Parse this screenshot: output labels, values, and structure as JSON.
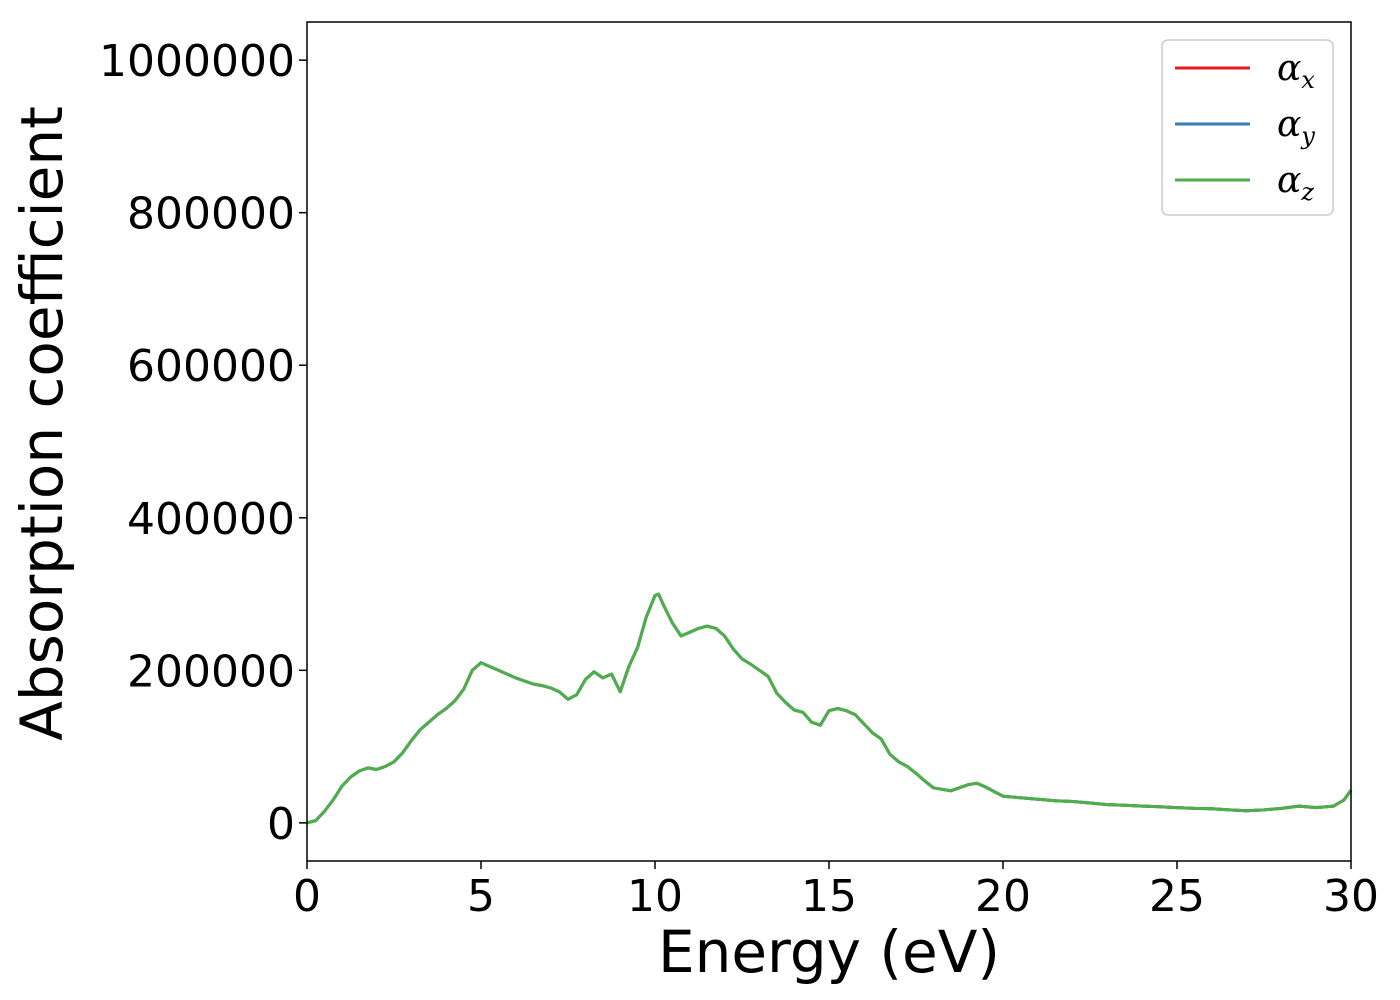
{
  "chart_data": {
    "type": "line",
    "title": "",
    "xlabel": "Energy (eV)",
    "ylabel": "Absorption coefficient",
    "xlim": [
      0,
      30
    ],
    "ylim": [
      -50000,
      1050000
    ],
    "xticks": [
      0,
      5,
      10,
      15,
      20,
      25,
      30
    ],
    "yticks": [
      0,
      200000,
      400000,
      600000,
      800000,
      1000000
    ],
    "xtick_labels": [
      "0",
      "5",
      "10",
      "15",
      "20",
      "25",
      "30"
    ],
    "ytick_labels": [
      "0",
      "200000",
      "400000",
      "600000",
      "800000",
      "1000000"
    ],
    "grid": false,
    "legend_position": "top-right",
    "x": [
      0,
      0.25,
      0.5,
      0.75,
      1.0,
      1.25,
      1.5,
      1.75,
      2.0,
      2.25,
      2.5,
      2.75,
      3.0,
      3.25,
      3.5,
      3.75,
      4.0,
      4.25,
      4.5,
      4.75,
      5.0,
      5.25,
      5.5,
      5.75,
      6.0,
      6.25,
      6.5,
      6.75,
      7.0,
      7.25,
      7.5,
      7.75,
      8.0,
      8.25,
      8.5,
      8.75,
      9.0,
      9.25,
      9.5,
      9.75,
      10.0,
      10.1,
      10.25,
      10.5,
      10.75,
      11.0,
      11.25,
      11.5,
      11.75,
      12.0,
      12.25,
      12.5,
      12.75,
      13.0,
      13.25,
      13.5,
      13.75,
      14.0,
      14.25,
      14.5,
      14.75,
      15.0,
      15.25,
      15.5,
      15.75,
      16.0,
      16.25,
      16.5,
      16.75,
      17.0,
      17.25,
      17.5,
      17.75,
      18.0,
      18.5,
      19.0,
      19.25,
      19.5,
      20.0,
      20.5,
      21.0,
      21.5,
      22.0,
      22.5,
      23.0,
      23.5,
      24.0,
      24.5,
      25.0,
      25.5,
      26.0,
      26.5,
      27.0,
      27.5,
      28.0,
      28.5,
      29.0,
      29.5,
      29.8,
      30.0
    ],
    "series": [
      {
        "name": "αx",
        "color": "#e41a1c",
        "values": [
          0,
          3000,
          15000,
          30000,
          48000,
          60000,
          68000,
          72000,
          70000,
          74000,
          80000,
          92000,
          108000,
          122000,
          132000,
          142000,
          150000,
          160000,
          175000,
          200000,
          210000,
          205000,
          200000,
          195000,
          190000,
          186000,
          182000,
          180000,
          177000,
          172000,
          162000,
          168000,
          188000,
          198000,
          190000,
          195000,
          172000,
          205000,
          230000,
          270000,
          298000,
          300000,
          285000,
          262000,
          245000,
          250000,
          255000,
          258000,
          255000,
          245000,
          228000,
          215000,
          208000,
          200000,
          192000,
          170000,
          158000,
          148000,
          145000,
          132000,
          128000,
          147000,
          150000,
          147000,
          142000,
          130000,
          118000,
          110000,
          90000,
          80000,
          74000,
          65000,
          55000,
          46000,
          42000,
          50000,
          52000,
          47000,
          35000,
          33000,
          31000,
          29000,
          28000,
          26000,
          24000,
          23000,
          22000,
          21000,
          20000,
          19000,
          18500,
          17000,
          16000,
          17000,
          19000,
          22000,
          20000,
          22000,
          30000,
          43000
        ]
      },
      {
        "name": "αy",
        "color": "#377eb8",
        "values": [
          0,
          3000,
          15000,
          30000,
          48000,
          60000,
          68000,
          72000,
          70000,
          74000,
          80000,
          92000,
          108000,
          122000,
          132000,
          142000,
          150000,
          160000,
          175000,
          200000,
          210000,
          205000,
          200000,
          195000,
          190000,
          186000,
          182000,
          180000,
          177000,
          172000,
          162000,
          168000,
          188000,
          198000,
          190000,
          195000,
          172000,
          205000,
          230000,
          270000,
          298000,
          300000,
          285000,
          262000,
          245000,
          250000,
          255000,
          258000,
          255000,
          245000,
          228000,
          215000,
          208000,
          200000,
          192000,
          170000,
          158000,
          148000,
          145000,
          132000,
          128000,
          147000,
          150000,
          147000,
          142000,
          130000,
          118000,
          110000,
          90000,
          80000,
          74000,
          65000,
          55000,
          46000,
          42000,
          50000,
          52000,
          47000,
          35000,
          33000,
          31000,
          29000,
          28000,
          26000,
          24000,
          23000,
          22000,
          21000,
          20000,
          19000,
          18500,
          17000,
          16000,
          17000,
          19000,
          22000,
          20000,
          22000,
          30000,
          43000
        ]
      },
      {
        "name": "αz",
        "color": "#4daf4a",
        "values": [
          0,
          3000,
          15000,
          30000,
          48000,
          60000,
          68000,
          72000,
          70000,
          74000,
          80000,
          92000,
          108000,
          122000,
          132000,
          142000,
          150000,
          160000,
          175000,
          200000,
          210000,
          205000,
          200000,
          195000,
          190000,
          186000,
          182000,
          180000,
          177000,
          172000,
          162000,
          168000,
          188000,
          198000,
          190000,
          195000,
          172000,
          205000,
          230000,
          270000,
          298000,
          300000,
          285000,
          262000,
          245000,
          250000,
          255000,
          258000,
          255000,
          245000,
          228000,
          215000,
          208000,
          200000,
          192000,
          170000,
          158000,
          148000,
          145000,
          132000,
          128000,
          147000,
          150000,
          147000,
          142000,
          130000,
          118000,
          110000,
          90000,
          80000,
          74000,
          65000,
          55000,
          46000,
          42000,
          50000,
          52000,
          47000,
          35000,
          33000,
          31000,
          29000,
          28000,
          26000,
          24000,
          23000,
          22000,
          21000,
          20000,
          19000,
          18500,
          17000,
          16000,
          17000,
          19000,
          22000,
          20000,
          22000,
          30000,
          43000
        ]
      }
    ],
    "legend": [
      {
        "symbol": "α",
        "subscript": "x",
        "color": "#e41a1c"
      },
      {
        "symbol": "α",
        "subscript": "y",
        "color": "#377eb8"
      },
      {
        "symbol": "α",
        "subscript": "z",
        "color": "#4daf4a"
      }
    ]
  }
}
